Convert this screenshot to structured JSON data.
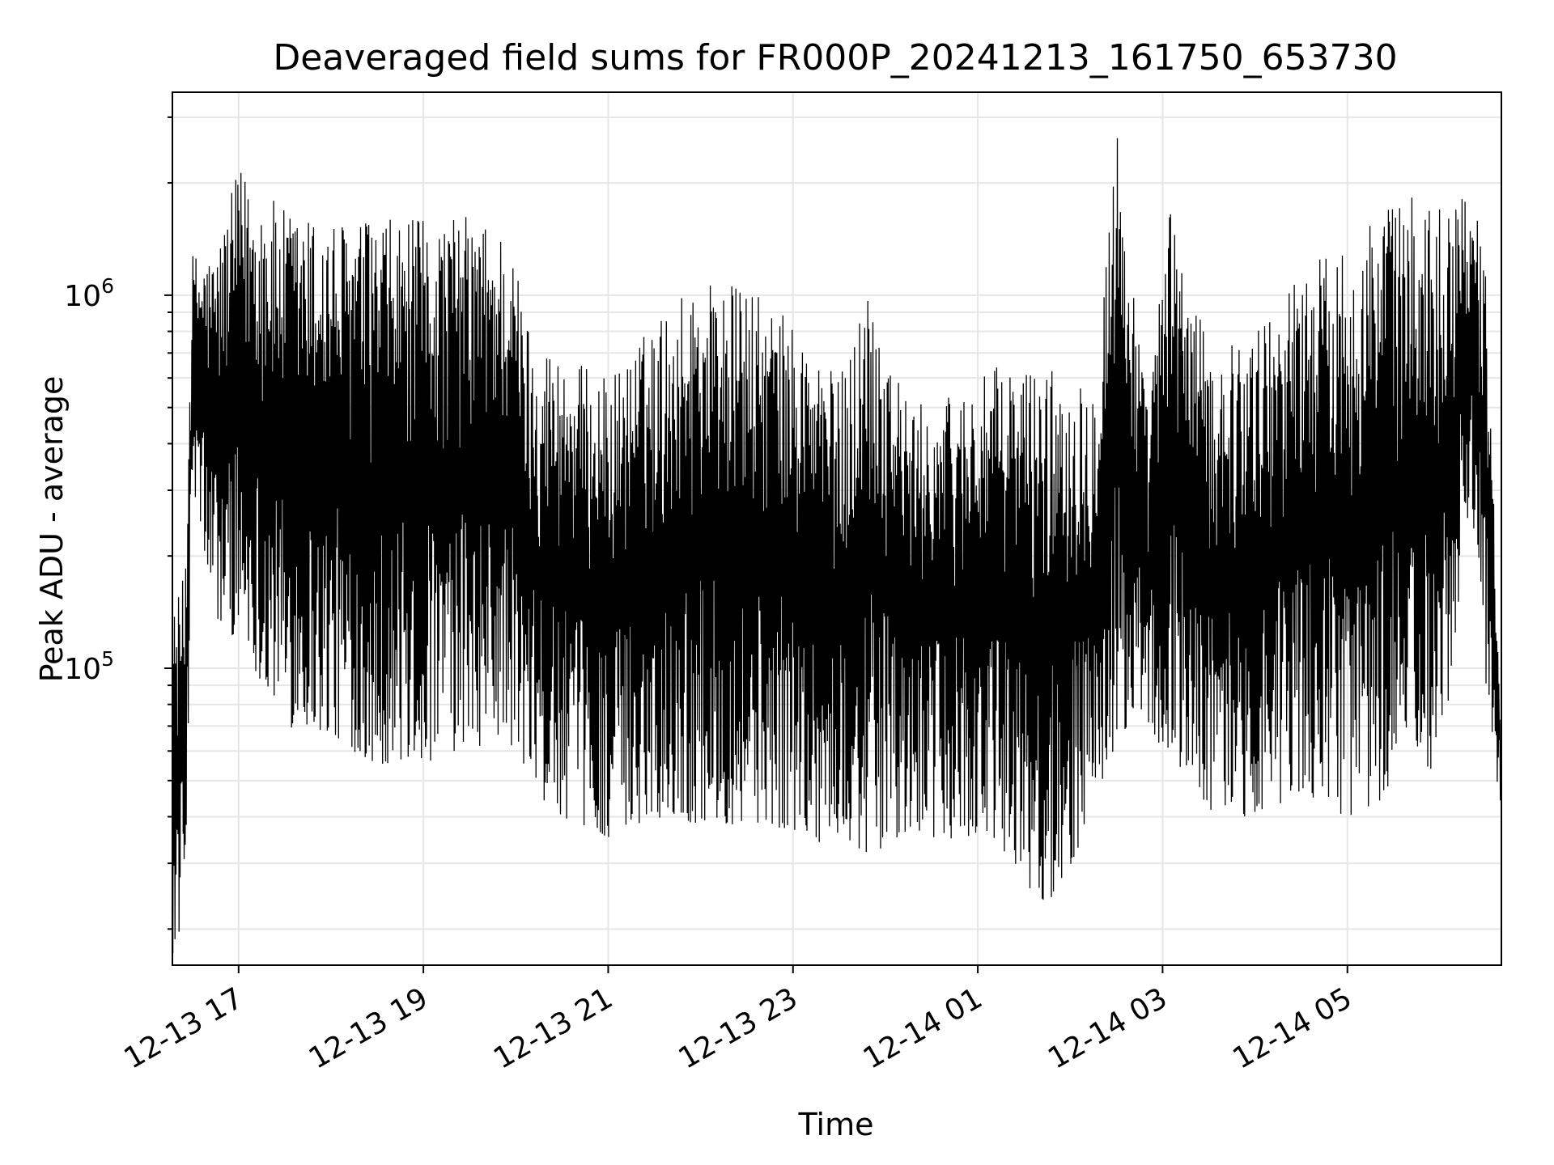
{
  "chart_data": {
    "type": "line",
    "title": "Deaveraged field sums for FR000P_20241213_161750_653730",
    "xlabel": "Time",
    "ylabel": "Peak ADU - average",
    "x_range": [
      "2024-12-13 16:17",
      "2024-12-14 06:40"
    ],
    "ylim": [
      16000,
      3500000
    ],
    "y_scale": "log",
    "grid": true,
    "legend": "none",
    "line_color": "#000000",
    "x_ticks": [
      {
        "label": "12-13 17",
        "time": "2024-12-13 17:00"
      },
      {
        "label": "12-13 19",
        "time": "2024-12-13 19:00"
      },
      {
        "label": "12-13 21",
        "time": "2024-12-13 21:00"
      },
      {
        "label": "12-13 23",
        "time": "2024-12-13 23:00"
      },
      {
        "label": "12-14 01",
        "time": "2024-12-14 01:00"
      },
      {
        "label": "12-14 03",
        "time": "2024-12-14 03:00"
      },
      {
        "label": "12-14 05",
        "time": "2024-12-14 05:00"
      }
    ],
    "y_ticks": [
      {
        "base": "10",
        "exp": "5",
        "value": 100000
      },
      {
        "base": "10",
        "exp": "6",
        "value": 1000000
      }
    ],
    "envelope": [
      {
        "time": "2024-12-13 16:17",
        "low": 17000,
        "high": 140000
      },
      {
        "time": "2024-12-13 16:25",
        "low": 21000,
        "high": 180000
      },
      {
        "time": "2024-12-13 16:30",
        "low": 300000,
        "high": 1300000
      },
      {
        "time": "2024-12-13 16:45",
        "low": 130000,
        "high": 1300000
      },
      {
        "time": "2024-12-13 17:00",
        "low": 120000,
        "high": 2200000
      },
      {
        "time": "2024-12-13 17:30",
        "low": 70000,
        "high": 1700000
      },
      {
        "time": "2024-12-13 18:00",
        "low": 65000,
        "high": 1600000
      },
      {
        "time": "2024-12-13 18:30",
        "low": 55000,
        "high": 1600000
      },
      {
        "time": "2024-12-13 19:00",
        "low": 55000,
        "high": 1600000
      },
      {
        "time": "2024-12-13 19:30",
        "low": 60000,
        "high": 1650000
      },
      {
        "time": "2024-12-13 19:55",
        "low": 65000,
        "high": 1500000
      },
      {
        "time": "2024-12-13 20:10",
        "low": 45000,
        "high": 800000
      },
      {
        "time": "2024-12-13 20:30",
        "low": 40000,
        "high": 700000
      },
      {
        "time": "2024-12-13 21:00",
        "low": 35000,
        "high": 600000
      },
      {
        "time": "2024-12-13 21:30",
        "low": 40000,
        "high": 850000
      },
      {
        "time": "2024-12-13 22:00",
        "low": 38000,
        "high": 1150000
      },
      {
        "time": "2024-12-13 22:30",
        "low": 38000,
        "high": 1050000
      },
      {
        "time": "2024-12-13 23:00",
        "low": 37000,
        "high": 850000
      },
      {
        "time": "2024-12-13 23:30",
        "low": 32000,
        "high": 600000
      },
      {
        "time": "2024-12-13 23:50",
        "low": 32000,
        "high": 1150000
      },
      {
        "time": "2024-12-14 00:15",
        "low": 35000,
        "high": 500000
      },
      {
        "time": "2024-12-14 00:45",
        "low": 35000,
        "high": 550000
      },
      {
        "time": "2024-12-14 01:15",
        "low": 33000,
        "high": 650000
      },
      {
        "time": "2024-12-14 01:45",
        "low": 22000,
        "high": 650000
      },
      {
        "time": "2024-12-14 02:15",
        "low": 40000,
        "high": 600000
      },
      {
        "time": "2024-12-14 02:30",
        "low": 60000,
        "high": 3000000
      },
      {
        "time": "2024-12-14 02:50",
        "low": 60000,
        "high": 500000
      },
      {
        "time": "2024-12-14 03:05",
        "low": 60000,
        "high": 1800000
      },
      {
        "time": "2024-12-14 03:30",
        "low": 40000,
        "high": 700000
      },
      {
        "time": "2024-12-14 04:00",
        "low": 40000,
        "high": 800000
      },
      {
        "time": "2024-12-14 04:30",
        "low": 45000,
        "high": 1200000
      },
      {
        "time": "2024-12-14 05:00",
        "low": 40000,
        "high": 1400000
      },
      {
        "time": "2024-12-14 05:30",
        "low": 45000,
        "high": 1850000
      },
      {
        "time": "2024-12-14 06:00",
        "low": 50000,
        "high": 1800000
      },
      {
        "time": "2024-12-14 06:20",
        "low": 300000,
        "high": 2000000
      },
      {
        "time": "2024-12-14 06:30",
        "low": 90000,
        "high": 1200000
      },
      {
        "time": "2024-12-14 06:40",
        "low": 40000,
        "high": 70000
      }
    ]
  }
}
